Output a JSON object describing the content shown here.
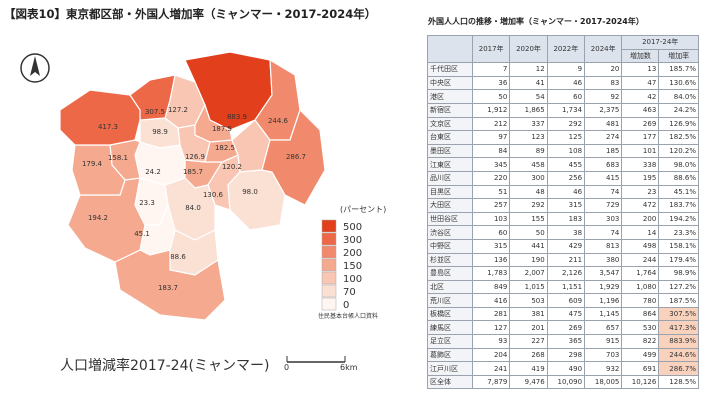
{
  "title": "【図表10】東京都区部・外国人増加率（ミャンマー・2017-2024年）",
  "map": {
    "caption": "人口増減率2017-24(ミャンマー)",
    "scale_start": "0",
    "scale_end": "6km",
    "source": "住民基本台帳人口資料",
    "legend_title": "(パーセント)",
    "legend": [
      {
        "value": 500,
        "color": "#e2401c"
      },
      {
        "value": 300,
        "color": "#ec6847"
      },
      {
        "value": 200,
        "color": "#f18a6c"
      },
      {
        "value": 150,
        "color": "#f5a98f"
      },
      {
        "value": 100,
        "color": "#f8c6b2"
      },
      {
        "value": 70,
        "color": "#fbe0d4"
      },
      {
        "value": 0,
        "color": "#fff6f2"
      }
    ],
    "wards": [
      {
        "label": "185.7",
        "value": 185.7
      },
      {
        "label": "130.6",
        "value": 130.6
      },
      {
        "label": "84.0",
        "value": 84.0
      },
      {
        "label": "24.2",
        "value": 24.2
      },
      {
        "label": "126.9",
        "value": 126.9
      },
      {
        "label": "182.5",
        "value": 182.5
      },
      {
        "label": "120.2",
        "value": 120.2
      },
      {
        "label": "98.0",
        "value": 98.0
      },
      {
        "label": "88.6",
        "value": 88.6
      },
      {
        "label": "45.1",
        "value": 45.1
      },
      {
        "label": "183.7",
        "value": 183.7
      },
      {
        "label": "194.2",
        "value": 194.2
      },
      {
        "label": "23.3",
        "value": 23.3
      },
      {
        "label": "158.1",
        "value": 158.1
      },
      {
        "label": "179.4",
        "value": 179.4
      },
      {
        "label": "98.9",
        "value": 98.9
      },
      {
        "label": "127.2",
        "value": 127.2
      },
      {
        "label": "187.5",
        "value": 187.5
      },
      {
        "label": "307.5",
        "value": 307.5
      },
      {
        "label": "417.3",
        "value": 417.3
      },
      {
        "label": "883.9",
        "value": 883.9
      },
      {
        "label": "244.6",
        "value": 244.6
      },
      {
        "label": "286.7",
        "value": 286.7
      }
    ]
  },
  "table": {
    "title": "外国人人口の推移・増加率（ミャンマー・2017-2024年）",
    "years": [
      "2017年",
      "2020年",
      "2022年",
      "2024年"
    ],
    "group": "2017-24年",
    "sub": [
      "増加数",
      "増加率"
    ],
    "rows": [
      [
        "千代田区",
        "7",
        "12",
        "9",
        "20",
        "13",
        "185.7%"
      ],
      [
        "中央区",
        "36",
        "41",
        "46",
        "83",
        "47",
        "130.6%"
      ],
      [
        "港区",
        "50",
        "54",
        "60",
        "92",
        "42",
        "84.0%"
      ],
      [
        "新宿区",
        "1,912",
        "1,865",
        "1,734",
        "2,375",
        "463",
        "24.2%"
      ],
      [
        "文京区",
        "212",
        "337",
        "292",
        "481",
        "269",
        "126.9%"
      ],
      [
        "台東区",
        "97",
        "123",
        "125",
        "274",
        "177",
        "182.5%"
      ],
      [
        "墨田区",
        "84",
        "89",
        "108",
        "185",
        "101",
        "120.2%"
      ],
      [
        "江東区",
        "345",
        "458",
        "455",
        "683",
        "338",
        "98.0%"
      ],
      [
        "品川区",
        "220",
        "300",
        "256",
        "415",
        "195",
        "88.6%"
      ],
      [
        "目黒区",
        "51",
        "48",
        "46",
        "74",
        "23",
        "45.1%"
      ],
      [
        "大田区",
        "257",
        "292",
        "315",
        "729",
        "472",
        "183.7%"
      ],
      [
        "世田谷区",
        "103",
        "155",
        "183",
        "303",
        "200",
        "194.2%"
      ],
      [
        "渋谷区",
        "60",
        "50",
        "38",
        "74",
        "14",
        "23.3%"
      ],
      [
        "中野区",
        "315",
        "441",
        "429",
        "813",
        "498",
        "158.1%"
      ],
      [
        "杉並区",
        "136",
        "190",
        "211",
        "380",
        "244",
        "179.4%"
      ],
      [
        "豊島区",
        "1,783",
        "2,007",
        "2,126",
        "3,547",
        "1,764",
        "98.9%"
      ],
      [
        "北区",
        "849",
        "1,015",
        "1,151",
        "1,929",
        "1,080",
        "127.2%"
      ],
      [
        "荒川区",
        "416",
        "503",
        "609",
        "1,196",
        "780",
        "187.5%"
      ],
      [
        "板橋区",
        "281",
        "381",
        "475",
        "1,145",
        "864",
        "307.5%"
      ],
      [
        "練馬区",
        "127",
        "201",
        "269",
        "657",
        "530",
        "417.3%"
      ],
      [
        "足立区",
        "93",
        "227",
        "365",
        "915",
        "822",
        "883.9%"
      ],
      [
        "葛飾区",
        "204",
        "268",
        "298",
        "703",
        "499",
        "244.6%"
      ],
      [
        "江戸川区",
        "241",
        "419",
        "490",
        "932",
        "691",
        "286.7%"
      ],
      [
        "区全体",
        "7,879",
        "9,476",
        "10,090",
        "18,005",
        "10,126",
        "128.5%"
      ]
    ]
  }
}
